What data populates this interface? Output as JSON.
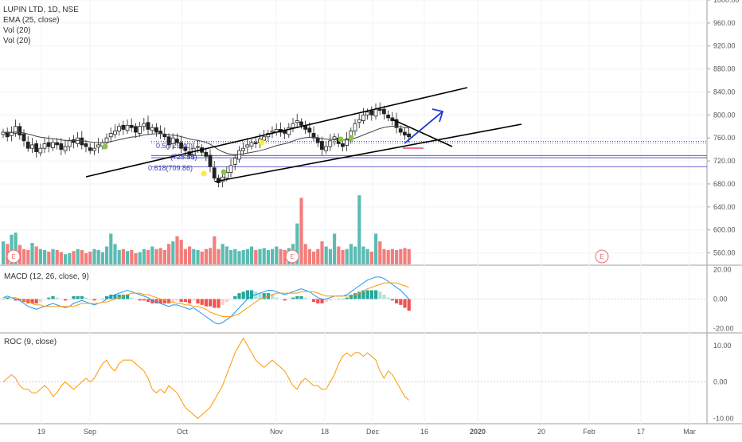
{
  "header": {
    "symbol_line": "LUPIN LTD, 1D, NSE",
    "ema_line": "EMA (25, close)",
    "vol_line_1": "Vol (20)",
    "vol_line_2": "Vol (20)"
  },
  "macd_label": "MACD (12, 26, close, 9)",
  "roc_label": "ROC (9, close)",
  "colors": {
    "up": "#26a69a",
    "down": "#ef5350",
    "ema": "#444444",
    "macd": "#2196f3",
    "signal": "#ff9800",
    "roc": "#ff9800",
    "fib": "#3f3fbf",
    "arrow": "#1f3bd1",
    "marker_green": "#8bc34a",
    "marker_yellow": "#ffeb3b"
  },
  "chart_data": [
    {
      "type": "candlestick",
      "title": "LUPIN LTD, 1D, NSE",
      "x_ticks": [
        "19",
        "Sep",
        "Oct",
        "Nov",
        "18",
        "Dec",
        "16",
        "2020",
        "20",
        "Feb",
        "17",
        "Mar"
      ],
      "y_ticks": [
        "1000.00",
        "960.00",
        "920.00",
        "880.00",
        "840.00",
        "800.00",
        "760.00",
        "720.00",
        "680.00",
        "640.00",
        "600.00",
        "560.00"
      ],
      "ylim": [
        540,
        1000
      ],
      "series": [
        {
          "name": "price_close",
          "values": [
            770,
            762,
            770,
            780,
            765,
            755,
            742,
            748,
            736,
            742,
            750,
            745,
            752,
            748,
            740,
            745,
            755,
            752,
            760,
            748,
            745,
            738,
            742,
            748,
            752,
            760,
            768,
            772,
            780,
            775,
            782,
            778,
            770,
            780,
            785,
            775,
            778,
            770,
            768,
            762,
            748,
            760,
            752,
            742,
            738,
            730,
            742,
            745,
            735,
            728,
            710,
            690,
            682,
            692,
            700,
            712,
            725,
            738,
            742,
            748,
            752,
            750,
            758,
            762,
            768,
            772,
            775,
            770,
            768,
            778,
            785,
            790,
            782,
            775,
            770,
            760,
            752,
            740,
            745,
            755,
            762,
            750,
            745,
            758,
            772,
            785,
            792,
            800,
            805,
            800,
            810,
            808,
            802,
            795,
            790,
            778,
            770,
            765,
            762
          ]
        }
      ],
      "annotations": [
        "0.5(729.40)",
        "(725.55)",
        "0.618(709.86)"
      ],
      "fib_levels": [
        754,
        751,
        729.4,
        725.55,
        709.86
      ]
    },
    {
      "type": "bar",
      "title": "Vol (20)",
      "series": [
        {
          "name": "volume",
          "values": [
            45,
            40,
            58,
            62,
            38,
            30,
            28,
            42,
            35,
            30,
            28,
            25,
            30,
            28,
            24,
            20,
            22,
            26,
            30,
            28,
            22,
            25,
            30,
            28,
            24,
            35,
            60,
            40,
            28,
            30,
            26,
            28,
            22,
            24,
            30,
            28,
            35,
            30,
            32,
            28,
            40,
            45,
            55,
            48,
            30,
            35,
            30,
            28,
            25,
            30,
            32,
            55,
            30,
            40,
            35,
            28,
            30,
            26,
            28,
            30,
            35,
            28,
            30,
            32,
            28,
            30,
            35,
            30,
            28,
            32,
            40,
            80,
            130,
            40,
            30,
            25,
            30,
            45,
            35,
            30,
            60,
            35,
            28,
            30,
            40,
            35,
            135,
            35,
            30,
            25,
            60,
            45,
            30,
            28,
            30,
            28,
            30,
            32,
            30
          ]
        }
      ]
    },
    {
      "type": "line",
      "title": "MACD (12, 26, close, 9)",
      "y_ticks": [
        "20.00",
        "0.00",
        "-20.00"
      ],
      "ylim": [
        -22,
        22
      ],
      "series": [
        {
          "name": "macd",
          "values": [
            1,
            2,
            1,
            0,
            -1,
            -3,
            -5,
            -6,
            -7,
            -6,
            -5,
            -4,
            -3,
            -4,
            -5,
            -6,
            -5,
            -3,
            -2,
            -1,
            -2,
            -3,
            -4,
            -3,
            -2,
            0,
            2,
            3,
            4,
            5,
            6,
            5,
            4,
            3,
            2,
            1,
            -1,
            -2,
            -3,
            -4,
            -5,
            -4,
            -4,
            -5,
            -6,
            -7,
            -6,
            -8,
            -10,
            -12,
            -14,
            -16,
            -17,
            -16,
            -14,
            -12,
            -9,
            -6,
            -3,
            0,
            2,
            3,
            4,
            5,
            6,
            6,
            5,
            4,
            3,
            4,
            5,
            6,
            7,
            6,
            5,
            3,
            1,
            0,
            0,
            1,
            2,
            2,
            2,
            3,
            5,
            7,
            9,
            11,
            13,
            14,
            15,
            15,
            14,
            12,
            10,
            8,
            6,
            3,
            0
          ]
        },
        {
          "name": "signal",
          "values": [
            1,
            1,
            1,
            1,
            0,
            -1,
            -2,
            -3,
            -4,
            -4,
            -5,
            -5,
            -5,
            -5,
            -5,
            -5,
            -5,
            -5,
            -4,
            -3,
            -3,
            -3,
            -3,
            -3,
            -2,
            -2,
            -1,
            0,
            1,
            2,
            3,
            4,
            4,
            4,
            3,
            3,
            2,
            1,
            0,
            -1,
            -2,
            -2,
            -3,
            -3,
            -4,
            -4,
            -5,
            -5,
            -6,
            -7,
            -9,
            -10,
            -11,
            -12,
            -12,
            -12,
            -11,
            -10,
            -8,
            -6,
            -4,
            -2,
            0,
            1,
            2,
            3,
            4,
            4,
            4,
            4,
            4,
            4,
            5,
            5,
            5,
            5,
            4,
            3,
            2,
            2,
            2,
            2,
            2,
            2,
            2,
            3,
            4,
            5,
            7,
            8,
            9,
            10,
            11,
            11,
            11,
            11,
            10,
            9,
            8
          ]
        }
      ]
    },
    {
      "type": "line",
      "title": "ROC (9, close)",
      "y_ticks": [
        "10.00",
        "0.00",
        "-10.00"
      ],
      "ylim": [
        -11,
        13
      ],
      "series": [
        {
          "name": "roc",
          "values": [
            0,
            1,
            2,
            1,
            -1,
            -2,
            -2,
            -3,
            -3,
            -2,
            -1,
            -2,
            -4,
            -3,
            -1,
            0,
            -1,
            -2,
            -1,
            0,
            1,
            0,
            1,
            3,
            5,
            6,
            4,
            3,
            5,
            6,
            6,
            6,
            5,
            4,
            3,
            1,
            -2,
            -3,
            -2,
            -3,
            -1,
            -2,
            -3,
            -5,
            -7,
            -8,
            -9,
            -10,
            -9,
            -8,
            -7,
            -5,
            -3,
            -1,
            2,
            5,
            8,
            10,
            12,
            10,
            8,
            6,
            5,
            4,
            5,
            6,
            5,
            4,
            3,
            1,
            -1,
            -2,
            0,
            1,
            0,
            -1,
            -1,
            -2,
            -2,
            0,
            2,
            5,
            7,
            8,
            7,
            8,
            8,
            7,
            8,
            7,
            6,
            3,
            1,
            3,
            2,
            0,
            -2,
            -4,
            -5
          ]
        }
      ]
    }
  ],
  "e_marker": "E"
}
